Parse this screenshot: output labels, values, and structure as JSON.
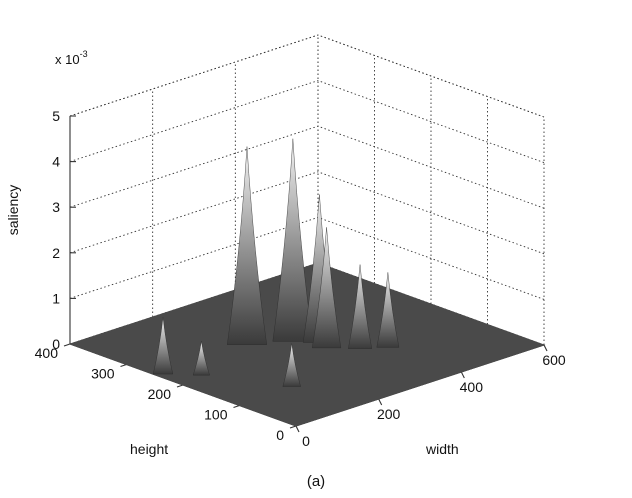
{
  "chart_data": {
    "type": "surface3d",
    "caption": "(a)",
    "zlabel": "saliency",
    "xlabel": "width",
    "ylabel": "height",
    "z_exponent": {
      "base": "x 10",
      "power": "-3"
    },
    "x_ticks": [
      "0",
      "200",
      "400",
      "600"
    ],
    "y_ticks": [
      "0",
      "100",
      "200",
      "300",
      "400"
    ],
    "z_ticks": [
      "0",
      "1",
      "2",
      "3",
      "4",
      "5"
    ],
    "xlim": [
      0,
      600
    ],
    "ylim": [
      0,
      400
    ],
    "zlim": [
      0,
      5
    ],
    "grid": true,
    "peaks": [
      {
        "x": 20,
        "y": 250,
        "z": 1.2
      },
      {
        "x": 65,
        "y": 215,
        "z": 0.7
      },
      {
        "x": 140,
        "y": 110,
        "z": 0.9
      },
      {
        "x": 230,
        "y": 255,
        "z": 4.3
      },
      {
        "x": 300,
        "y": 225,
        "z": 4.4
      },
      {
        "x": 330,
        "y": 200,
        "z": 3.2
      },
      {
        "x": 320,
        "y": 180,
        "z": 2.6
      },
      {
        "x": 360,
        "y": 150,
        "z": 1.8
      },
      {
        "x": 400,
        "y": 130,
        "z": 1.6
      }
    ],
    "colors": {
      "floor": "#4a4a4a",
      "peak_low": "#3a3a3a",
      "peak_high": "#f4f4f4",
      "grid": "#333333"
    }
  }
}
